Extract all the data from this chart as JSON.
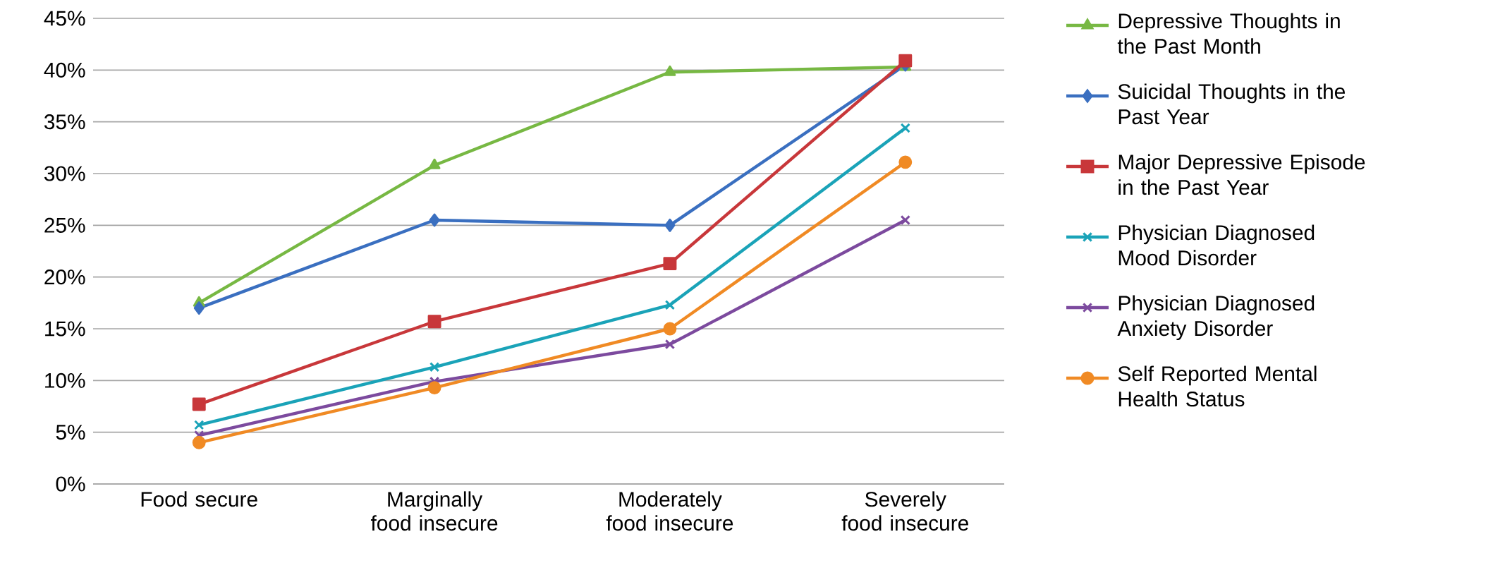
{
  "chart_data": {
    "type": "line",
    "categories": [
      "Food secure",
      "Marginally food insecure",
      "Moderately food insecure",
      "Severely food insecure"
    ],
    "series": [
      {
        "name": "Depressive Thoughts in the Past Month",
        "color": "#77b843",
        "marker": "triangle",
        "values": [
          17.5,
          30.8,
          39.8,
          40.3
        ]
      },
      {
        "name": "Suicidal Thoughts in the Past Year",
        "color": "#3a6fc0",
        "marker": "diamond",
        "values": [
          17.0,
          25.5,
          25.0,
          40.5
        ]
      },
      {
        "name": "Major Depressive Episode in the Past Year",
        "color": "#c8373a",
        "marker": "square",
        "values": [
          7.7,
          15.7,
          21.3,
          40.9
        ]
      },
      {
        "name": "Physician Diagnosed Mood Disorder",
        "color": "#1aa3b8",
        "marker": "cross",
        "values": [
          5.7,
          11.3,
          17.3,
          34.4
        ]
      },
      {
        "name": "Physician Diagnosed Anxiety Disorder",
        "color": "#7c4a9e",
        "marker": "cross",
        "values": [
          4.7,
          9.9,
          13.5,
          25.5
        ]
      },
      {
        "name": "Self Reported Mental Health Status",
        "color": "#f08a24",
        "marker": "circle",
        "values": [
          4.0,
          9.3,
          15.0,
          31.1
        ]
      }
    ],
    "ylim": [
      0,
      45
    ],
    "yticks": [
      {
        "value": 0,
        "label": "0%"
      },
      {
        "value": 5,
        "label": "5%"
      },
      {
        "value": 10,
        "label": "10%"
      },
      {
        "value": 15,
        "label": "15%"
      },
      {
        "value": 20,
        "label": "20%"
      },
      {
        "value": 25,
        "label": "25%"
      },
      {
        "value": 30,
        "label": "30%"
      },
      {
        "value": 35,
        "label": "35%"
      },
      {
        "value": 40,
        "label": "40%"
      },
      {
        "value": 45,
        "label": "45%"
      }
    ],
    "grid": "y",
    "legend": "right",
    "line_style": "solid"
  }
}
